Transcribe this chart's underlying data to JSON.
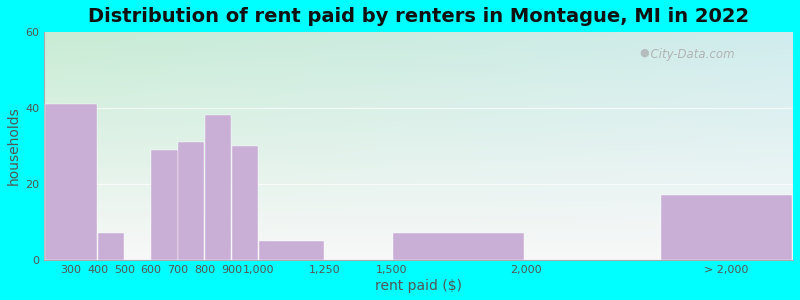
{
  "title": "Distribution of rent paid by renters in Montague, MI in 2022",
  "xlabel": "rent paid ($)",
  "ylabel": "households",
  "bar_color": "#c9aed6",
  "background_outer": "#00ffff",
  "ylim": [
    0,
    60
  ],
  "yticks": [
    0,
    20,
    40,
    60
  ],
  "bin_edges": [
    200,
    400,
    500,
    600,
    700,
    800,
    900,
    1000,
    1250,
    1500,
    2000,
    2500,
    3000
  ],
  "values": [
    41,
    7,
    0,
    29,
    31,
    38,
    30,
    5,
    0,
    7,
    0,
    17
  ],
  "xtick_positions": [
    300,
    400,
    500,
    600,
    700,
    800,
    900,
    1000,
    1250,
    1500,
    2000,
    2750
  ],
  "xtick_labels": [
    "300",
    "400",
    "500",
    "600",
    "700",
    "800",
    "900",
    "1,000",
    "1,250",
    "1,500",
    "2,000",
    "> 2,000"
  ],
  "title_fontsize": 14,
  "axis_label_fontsize": 10,
  "tick_fontsize": 8,
  "watermark": "City-Data.com"
}
